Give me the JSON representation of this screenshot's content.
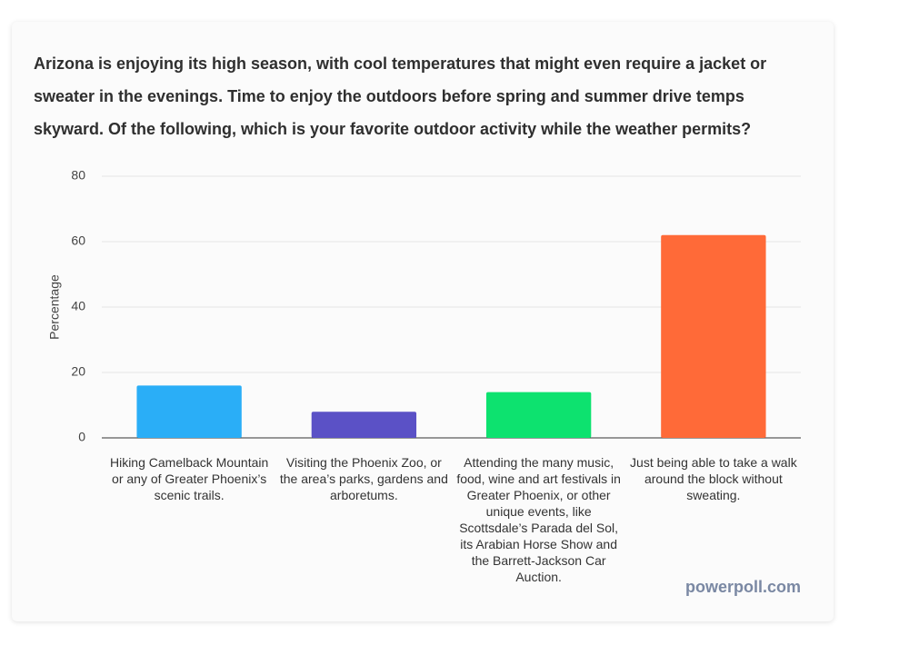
{
  "chart_data": {
    "type": "bar",
    "title": "Arizona is enjoying its high season, with cool temperatures that might even require a jacket or sweater in the evenings. Time to enjoy the outdoors before spring and summer drive temps skyward. Of the following, which is your favorite outdoor activity while the weather permits?",
    "categories": [
      "Hiking Camelback Mountain or any of Greater Phoenix’s scenic trails.",
      "Visiting the Phoenix Zoo, or the area’s parks, gardens and arboretums.",
      "Attending the many music, food, wine and art festivals in Greater Phoenix, or other unique events, like Scottsdale’s Parada del Sol, its Arabian Horse Show and the Barrett-Jackson Car Auction.",
      "Just being able to take a walk around the block without sweating."
    ],
    "values": [
      16,
      8,
      14,
      62
    ],
    "colors": [
      "#2aaef7",
      "#5b51c6",
      "#0de26f",
      "#ff6a38"
    ],
    "y_label": "Percentage",
    "ylim": [
      0,
      80
    ],
    "yticks": [
      0,
      20,
      40,
      60,
      80
    ],
    "grid": true,
    "watermark": "powerpoll.com"
  }
}
